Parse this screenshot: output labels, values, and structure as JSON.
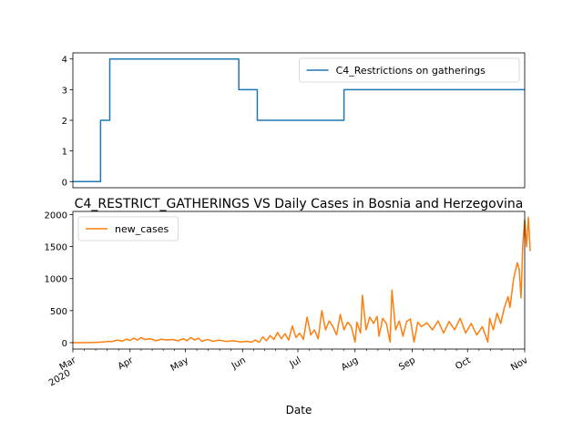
{
  "chart_data": [
    {
      "type": "line",
      "title": "",
      "xlabel": "",
      "ylabel": "",
      "x_range": [
        "2020-03-01",
        "2020-11-01"
      ],
      "ylim": [
        -0.2,
        4.2
      ],
      "y_ticks": [
        0,
        1,
        2,
        3,
        4
      ],
      "grid": false,
      "legend_position": "top-right",
      "series": [
        {
          "name": "C4_Restrictions on gatherings",
          "color": "#1f77b4",
          "step_points": [
            [
              "2020-03-01",
              0
            ],
            [
              "2020-03-16",
              0
            ],
            [
              "2020-03-16",
              2
            ],
            [
              "2020-03-21",
              2
            ],
            [
              "2020-03-21",
              4
            ],
            [
              "2020-05-30",
              4
            ],
            [
              "2020-05-30",
              3
            ],
            [
              "2020-06-09",
              3
            ],
            [
              "2020-06-09",
              2
            ],
            [
              "2020-07-26",
              2
            ],
            [
              "2020-07-26",
              3
            ],
            [
              "2020-11-01",
              3
            ]
          ]
        }
      ]
    },
    {
      "type": "line",
      "title": "C4_RESTRICT_GATHERINGS VS Daily Cases in Bosnia and Herzegovina",
      "xlabel": "Date",
      "ylabel": "",
      "x_range": [
        "2020-03-01",
        "2020-11-01"
      ],
      "ylim": [
        -100,
        2050
      ],
      "y_ticks": [
        0,
        500,
        1000,
        1500,
        2000
      ],
      "x_ticks": [
        {
          "date": "2020-03-01",
          "label": "Mar",
          "sublabel": "2020"
        },
        {
          "date": "2020-04-01",
          "label": "Apr"
        },
        {
          "date": "2020-05-01",
          "label": "May"
        },
        {
          "date": "2020-06-01",
          "label": "Jun"
        },
        {
          "date": "2020-07-01",
          "label": "Jul"
        },
        {
          "date": "2020-08-01",
          "label": "Aug"
        },
        {
          "date": "2020-09-01",
          "label": "Sep"
        },
        {
          "date": "2020-10-01",
          "label": "Oct"
        },
        {
          "date": "2020-11-01",
          "label": "Nov"
        }
      ],
      "grid": false,
      "legend_position": "top-left",
      "series": [
        {
          "name": "new_cases",
          "color": "#ff7f0e",
          "points": [
            [
              "2020-03-01",
              0
            ],
            [
              "2020-03-05",
              0
            ],
            [
              "2020-03-10",
              2
            ],
            [
              "2020-03-14",
              5
            ],
            [
              "2020-03-18",
              10
            ],
            [
              "2020-03-20",
              20
            ],
            [
              "2020-03-22",
              15
            ],
            [
              "2020-03-25",
              40
            ],
            [
              "2020-03-28",
              25
            ],
            [
              "2020-03-30",
              55
            ],
            [
              "2020-04-01",
              35
            ],
            [
              "2020-04-03",
              70
            ],
            [
              "2020-04-05",
              40
            ],
            [
              "2020-04-07",
              80
            ],
            [
              "2020-04-09",
              50
            ],
            [
              "2020-04-12",
              60
            ],
            [
              "2020-04-15",
              30
            ],
            [
              "2020-04-18",
              55
            ],
            [
              "2020-04-21",
              40
            ],
            [
              "2020-04-24",
              50
            ],
            [
              "2020-04-27",
              30
            ],
            [
              "2020-04-30",
              60
            ],
            [
              "2020-05-02",
              30
            ],
            [
              "2020-05-04",
              80
            ],
            [
              "2020-05-06",
              40
            ],
            [
              "2020-05-08",
              70
            ],
            [
              "2020-05-10",
              20
            ],
            [
              "2020-05-13",
              50
            ],
            [
              "2020-05-16",
              20
            ],
            [
              "2020-05-19",
              40
            ],
            [
              "2020-05-23",
              20
            ],
            [
              "2020-05-27",
              30
            ],
            [
              "2020-05-31",
              10
            ],
            [
              "2020-06-03",
              20
            ],
            [
              "2020-06-06",
              10
            ],
            [
              "2020-06-08",
              40
            ],
            [
              "2020-06-10",
              5
            ],
            [
              "2020-06-12",
              90
            ],
            [
              "2020-06-14",
              30
            ],
            [
              "2020-06-16",
              110
            ],
            [
              "2020-06-18",
              50
            ],
            [
              "2020-06-20",
              160
            ],
            [
              "2020-06-22",
              60
            ],
            [
              "2020-06-24",
              140
            ],
            [
              "2020-06-26",
              40
            ],
            [
              "2020-06-28",
              260
            ],
            [
              "2020-06-30",
              80
            ],
            [
              "2020-07-02",
              150
            ],
            [
              "2020-07-04",
              50
            ],
            [
              "2020-07-06",
              400
            ],
            [
              "2020-07-08",
              120
            ],
            [
              "2020-07-10",
              200
            ],
            [
              "2020-07-12",
              60
            ],
            [
              "2020-07-14",
              500
            ],
            [
              "2020-07-16",
              200
            ],
            [
              "2020-07-18",
              340
            ],
            [
              "2020-07-20",
              250
            ],
            [
              "2020-07-22",
              120
            ],
            [
              "2020-07-24",
              440
            ],
            [
              "2020-07-26",
              200
            ],
            [
              "2020-07-28",
              320
            ],
            [
              "2020-07-30",
              250
            ],
            [
              "2020-08-01",
              10
            ],
            [
              "2020-08-02",
              320
            ],
            [
              "2020-08-04",
              150
            ],
            [
              "2020-08-05",
              740
            ],
            [
              "2020-08-07",
              200
            ],
            [
              "2020-08-09",
              400
            ],
            [
              "2020-08-11",
              300
            ],
            [
              "2020-08-13",
              410
            ],
            [
              "2020-08-14",
              100
            ],
            [
              "2020-08-16",
              380
            ],
            [
              "2020-08-18",
              300
            ],
            [
              "2020-08-20",
              10
            ],
            [
              "2020-08-21",
              820
            ],
            [
              "2020-08-23",
              200
            ],
            [
              "2020-08-25",
              340
            ],
            [
              "2020-08-27",
              100
            ],
            [
              "2020-08-29",
              330
            ],
            [
              "2020-08-31",
              370
            ],
            [
              "2020-09-02",
              10
            ],
            [
              "2020-09-04",
              320
            ],
            [
              "2020-09-06",
              250
            ],
            [
              "2020-09-09",
              310
            ],
            [
              "2020-09-12",
              200
            ],
            [
              "2020-09-15",
              340
            ],
            [
              "2020-09-18",
              150
            ],
            [
              "2020-09-21",
              330
            ],
            [
              "2020-09-24",
              200
            ],
            [
              "2020-09-27",
              380
            ],
            [
              "2020-09-30",
              150
            ],
            [
              "2020-10-03",
              300
            ],
            [
              "2020-10-06",
              120
            ],
            [
              "2020-10-09",
              250
            ],
            [
              "2020-10-12",
              10
            ],
            [
              "2020-10-13",
              380
            ],
            [
              "2020-10-15",
              200
            ],
            [
              "2020-10-17",
              460
            ],
            [
              "2020-10-19",
              300
            ],
            [
              "2020-10-21",
              550
            ],
            [
              "2020-10-23",
              720
            ],
            [
              "2020-10-24",
              550
            ],
            [
              "2020-10-26",
              1000
            ],
            [
              "2020-10-28",
              1250
            ],
            [
              "2020-10-29",
              1150
            ],
            [
              "2020-10-30",
              700
            ],
            [
              "2020-10-31",
              1550
            ],
            [
              "2020-11-01",
              1920
            ],
            [
              "2020-11-02",
              1500
            ],
            [
              "2020-11-03",
              1960
            ],
            [
              "2020-11-04",
              1430
            ]
          ]
        }
      ]
    }
  ]
}
